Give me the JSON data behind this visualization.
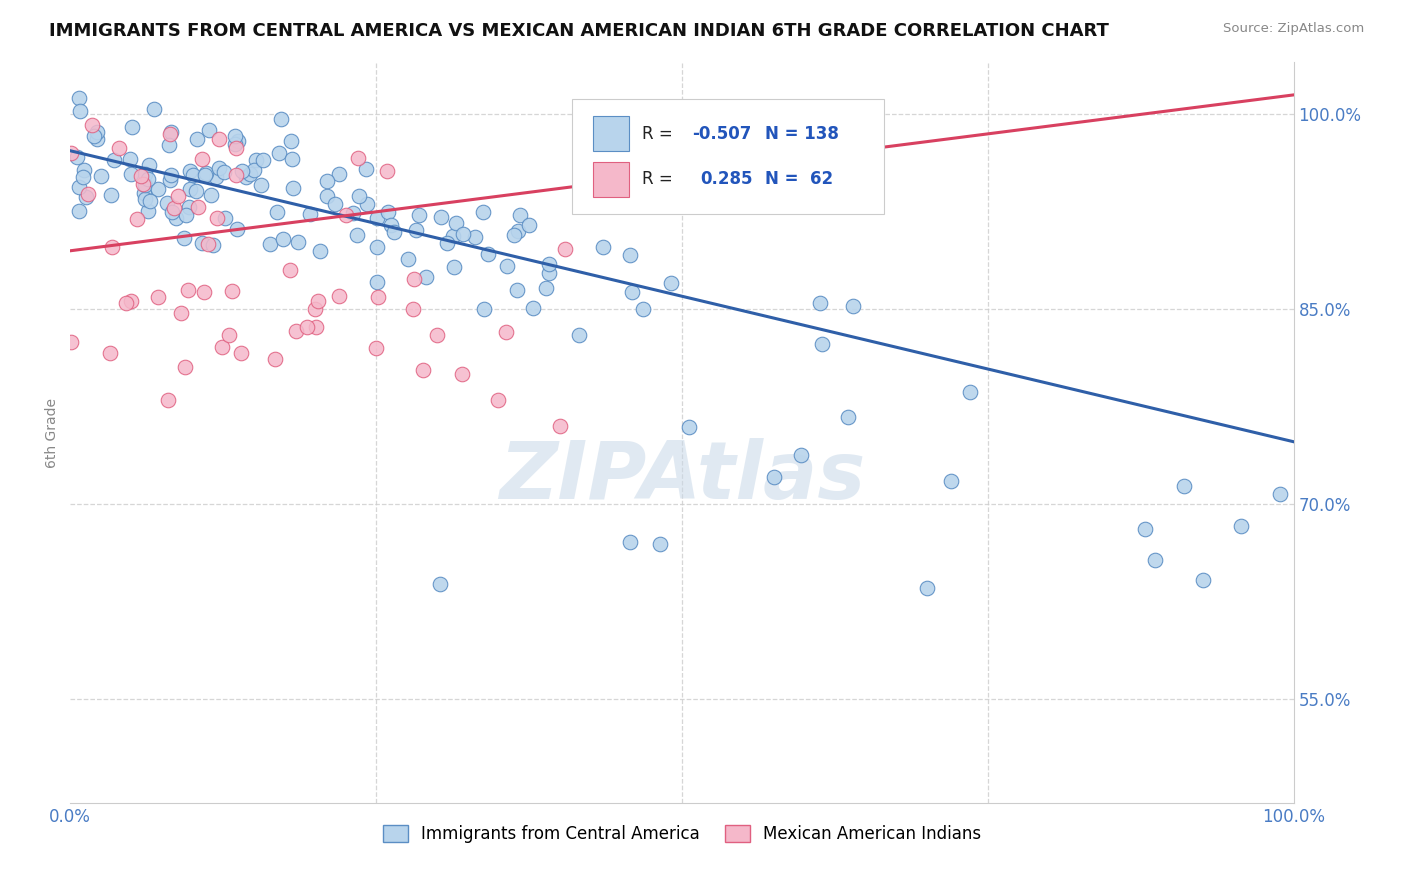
{
  "title": "IMMIGRANTS FROM CENTRAL AMERICA VS MEXICAN AMERICAN INDIAN 6TH GRADE CORRELATION CHART",
  "source": "Source: ZipAtlas.com",
  "ylabel": "6th Grade",
  "watermark": "ZIPAtlas",
  "xlim": [
    0.0,
    1.0
  ],
  "ylim": [
    0.47,
    1.04
  ],
  "blue_R": -0.507,
  "blue_N": 138,
  "pink_R": 0.285,
  "pink_N": 62,
  "yticks": [
    0.55,
    0.7,
    0.85,
    1.0
  ],
  "ytick_labels": [
    "55.0%",
    "70.0%",
    "85.0%",
    "100.0%"
  ],
  "blue_color": "#b8d4ec",
  "blue_edge_color": "#5b8ec4",
  "pink_color": "#f5b8ca",
  "pink_edge_color": "#e06080",
  "blue_line_color": "#2f5fa8",
  "pink_line_color": "#d84060",
  "background_color": "#ffffff",
  "grid_color": "#cccccc",
  "blue_trend_x0": 0.0,
  "blue_trend_y0": 0.972,
  "blue_trend_x1": 1.0,
  "blue_trend_y1": 0.748,
  "pink_trend_x0": 0.0,
  "pink_trend_y0": 0.895,
  "pink_trend_x1": 1.0,
  "pink_trend_y1": 1.015
}
